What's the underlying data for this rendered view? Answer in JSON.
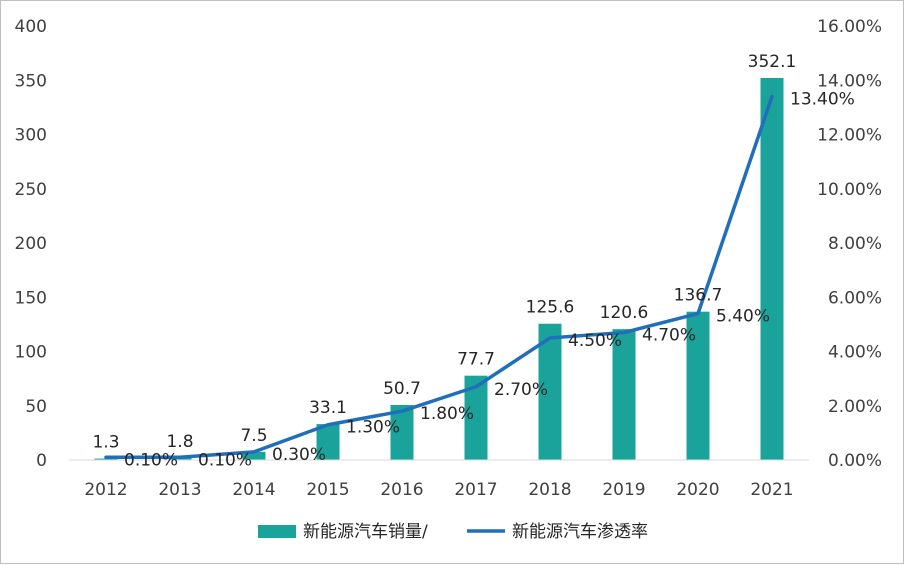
{
  "chart_data": {
    "type": "bar+line",
    "categories": [
      "2012",
      "2013",
      "2014",
      "2015",
      "2016",
      "2017",
      "2018",
      "2019",
      "2020",
      "2021"
    ],
    "series": [
      {
        "name": "新能源汽车销量/",
        "type": "bar",
        "axis": "left",
        "values": [
          1.3,
          1.8,
          7.5,
          33.1,
          50.7,
          77.7,
          125.6,
          120.6,
          136.7,
          352.1
        ],
        "labels": [
          "1.3",
          "1.8",
          "7.5",
          "33.1",
          "50.7",
          "77.7",
          "125.6",
          "120.6",
          "136.7",
          "352.1"
        ],
        "color": "#1aa39a"
      },
      {
        "name": "新能源汽车渗透率",
        "type": "line",
        "axis": "right",
        "values": [
          0.1,
          0.1,
          0.3,
          1.3,
          1.8,
          2.7,
          4.5,
          4.7,
          5.4,
          13.4
        ],
        "labels": [
          "0.10%",
          "0.10%",
          "0.30%",
          "1.30%",
          "1.80%",
          "2.70%",
          "4.50%",
          "4.70%",
          "5.40%",
          "13.40%"
        ],
        "color": "#1f6fba"
      }
    ],
    "y_left": {
      "ylim": [
        0,
        400
      ],
      "ticks": [
        "0",
        "50",
        "100",
        "150",
        "200",
        "250",
        "300",
        "350",
        "400"
      ]
    },
    "y_right": {
      "ylim": [
        0,
        16
      ],
      "ticks": [
        "0.00%",
        "2.00%",
        "4.00%",
        "6.00%",
        "8.00%",
        "10.00%",
        "12.00%",
        "14.00%",
        "16.00%"
      ]
    },
    "grid": false,
    "legend": "bottom"
  }
}
